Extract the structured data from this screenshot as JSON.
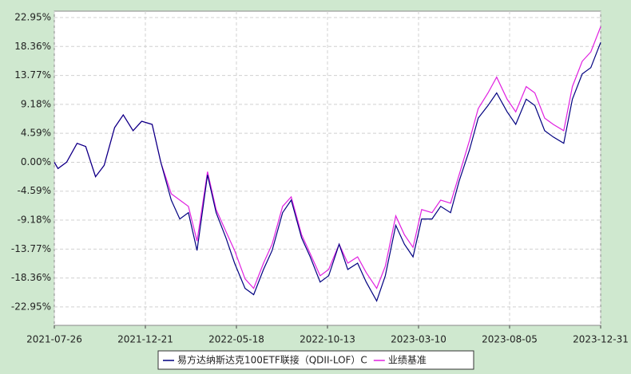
{
  "chart_data": {
    "type": "line",
    "x": [
      "2021-07-26",
      "2021-08-01",
      "2021-08-15",
      "2021-09-01",
      "2021-09-15",
      "2021-10-01",
      "2021-10-15",
      "2021-11-01",
      "2021-11-15",
      "2021-12-01",
      "2021-12-15",
      "2022-01-01",
      "2022-01-15",
      "2022-02-01",
      "2022-02-15",
      "2022-03-01",
      "2022-03-15",
      "2022-04-01",
      "2022-04-15",
      "2022-05-01",
      "2022-05-15",
      "2022-06-01",
      "2022-06-15",
      "2022-07-01",
      "2022-07-15",
      "2022-08-01",
      "2022-08-15",
      "2022-09-01",
      "2022-09-15",
      "2022-10-01",
      "2022-10-15",
      "2022-11-01",
      "2022-11-15",
      "2022-12-01",
      "2022-12-15",
      "2023-01-01",
      "2023-01-15",
      "2023-02-01",
      "2023-02-15",
      "2023-03-01",
      "2023-03-15",
      "2023-04-01",
      "2023-04-15",
      "2023-05-01",
      "2023-05-15",
      "2023-06-01",
      "2023-06-15",
      "2023-07-01",
      "2023-07-15",
      "2023-08-01",
      "2023-08-15",
      "2023-09-01",
      "2023-09-15",
      "2023-10-01",
      "2023-10-15",
      "2023-11-01",
      "2023-11-15",
      "2023-12-01",
      "2023-12-15",
      "2023-12-31"
    ],
    "series": [
      {
        "name": "易方达纳斯达克100ETF联接（QDII-LOF）C",
        "color": "#000080",
        "values": [
          0,
          -1,
          0,
          3,
          2.5,
          -2.3,
          -0.5,
          5.5,
          7.5,
          5,
          6.5,
          6,
          0,
          -6,
          -9,
          -8,
          -14,
          -2,
          -8,
          -12,
          -16,
          -20,
          -21,
          -17,
          -14,
          -8,
          -6,
          -12,
          -15,
          -19,
          -18,
          -13,
          -17,
          -16,
          -19,
          -22,
          -18,
          -10,
          -13,
          -15,
          -9,
          -9,
          -7,
          -8,
          -3,
          2,
          7,
          9,
          11,
          8,
          6,
          10,
          9,
          5,
          4,
          3,
          10,
          14,
          15,
          19
        ]
      },
      {
        "name": "业绩基准",
        "color": "#e020e0",
        "values": [
          0,
          -1,
          0,
          3,
          2.5,
          -2.3,
          -0.5,
          5.5,
          7.5,
          5,
          6.5,
          6,
          0,
          -5,
          -6,
          -7,
          -12.5,
          -1.5,
          -7.5,
          -11,
          -14,
          -18.5,
          -20,
          -16,
          -13,
          -7,
          -5.5,
          -11.5,
          -14.5,
          -18,
          -17,
          -13,
          -16,
          -15,
          -17.5,
          -20,
          -16.5,
          -8.5,
          -11.5,
          -13.5,
          -7.5,
          -8,
          -6,
          -6.5,
          -2,
          3.5,
          8.5,
          11,
          13.5,
          10,
          8,
          12,
          11,
          7,
          6,
          5,
          12,
          16,
          17.5,
          21.5
        ]
      }
    ],
    "xlim": [
      "2021-07-26",
      "2023-12-31"
    ],
    "xticks": [
      "2021-07-26",
      "2021-12-21",
      "2022-05-18",
      "2022-10-13",
      "2023-03-10",
      "2023-08-05",
      "2023-12-31"
    ],
    "ylim": [
      -25.87,
      23.96
    ],
    "yticks": [
      {
        "value": -22.95,
        "label": "-22.95%"
      },
      {
        "value": -18.36,
        "label": "-18.36%"
      },
      {
        "value": -13.77,
        "label": "-13.77%"
      },
      {
        "value": -9.18,
        "label": "-9.18%"
      },
      {
        "value": -4.59,
        "label": "-4.59%"
      },
      {
        "value": 0,
        "label": "0.00%"
      },
      {
        "value": 4.59,
        "label": "4.59%"
      },
      {
        "value": 9.18,
        "label": "9.18%"
      },
      {
        "value": 13.77,
        "label": "13.77%"
      },
      {
        "value": 18.36,
        "label": "18.36%"
      },
      {
        "value": 22.95,
        "label": "22.95%"
      }
    ],
    "grid": true
  }
}
